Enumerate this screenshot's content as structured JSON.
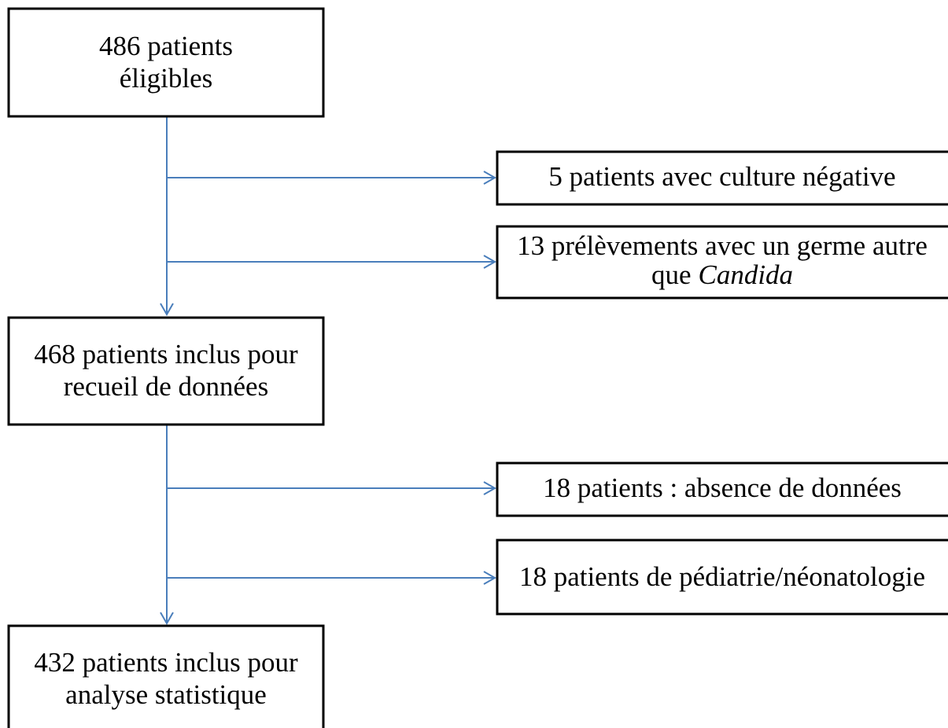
{
  "nodes": [
    {
      "lines": [
        "486 patients",
        "éligibles"
      ]
    },
    {
      "lines": [
        "5 patients avec culture négative"
      ]
    },
    {
      "lines": [
        "13 prélèvements avec un germe autre"
      ],
      "last_line": [
        "que",
        "Candida"
      ]
    },
    {
      "lines": [
        "468 patients inclus pour",
        "recueil de données"
      ]
    },
    {
      "lines": [
        "18 patients : absence de données"
      ]
    },
    {
      "lines": [
        "18 patients de pédiatrie/néonatologie"
      ]
    },
    {
      "lines": [
        "432 patients inclus pour",
        "analyse statistique"
      ]
    }
  ]
}
